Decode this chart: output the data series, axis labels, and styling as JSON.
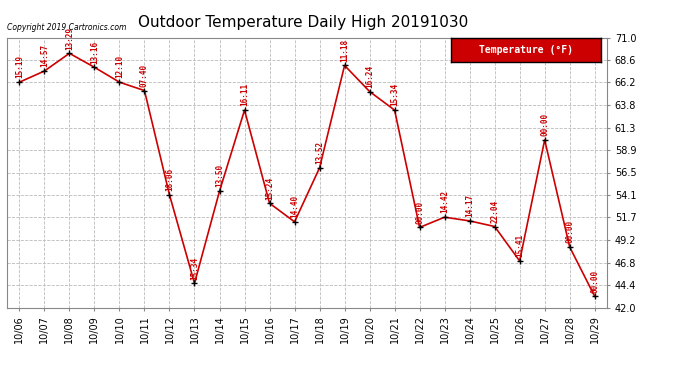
{
  "title": "Outdoor Temperature Daily High 20191030",
  "copyright_text": "Copyright 2019 Cartronics.com",
  "legend_label": "Temperature (°F)",
  "dates": [
    "10/06",
    "10/07",
    "10/08",
    "10/09",
    "10/10",
    "10/11",
    "10/12",
    "10/13",
    "10/14",
    "10/15",
    "10/16",
    "10/17",
    "10/18",
    "10/19",
    "10/20",
    "10/21",
    "10/22",
    "10/23",
    "10/24",
    "10/25",
    "10/26",
    "10/27",
    "10/28",
    "10/29"
  ],
  "temps": [
    66.2,
    67.4,
    69.3,
    67.8,
    66.2,
    65.3,
    54.1,
    44.6,
    54.5,
    63.2,
    53.2,
    51.2,
    57.0,
    68.0,
    65.2,
    63.2,
    50.6,
    51.7,
    51.3,
    50.7,
    47.0,
    60.0,
    48.5,
    43.2
  ],
  "labels": [
    "15:19",
    "14:57",
    "13:29",
    "13:16",
    "12:10",
    "07:40",
    "18:06",
    "15:34",
    "13:50",
    "16:11",
    "15:24",
    "14:40",
    "13:52",
    "11:18",
    "16:24",
    "15:34",
    "00:00",
    "14:42",
    "14:17",
    "22:04",
    "15:41",
    "00:00",
    "00:00",
    "00:00"
  ],
  "ylim_min": 42.0,
  "ylim_max": 71.0,
  "yticks": [
    42.0,
    44.4,
    46.8,
    49.2,
    51.7,
    54.1,
    56.5,
    58.9,
    61.3,
    63.8,
    66.2,
    68.6,
    71.0
  ],
  "line_color": "#cc0000",
  "marker_color": "#000000",
  "bg_color": "#ffffff",
  "grid_color": "#bbbbbb",
  "label_color": "#cc0000",
  "legend_bg": "#cc0000",
  "legend_text_color": "#ffffff",
  "title_fontsize": 11,
  "tick_fontsize": 7,
  "label_fontsize": 5.5
}
